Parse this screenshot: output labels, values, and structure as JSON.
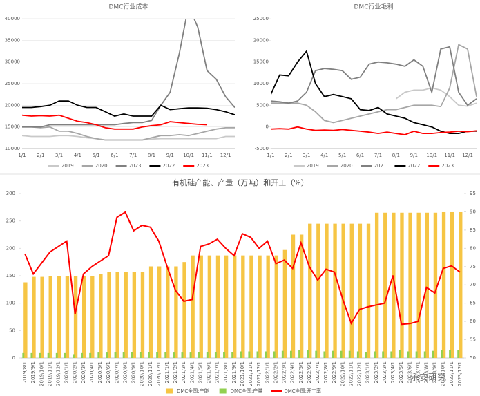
{
  "chart_data": [
    {
      "type": "line",
      "title": "DMC行业成本",
      "categories": [
        "1/1",
        null,
        "2/1",
        null,
        "3/1",
        null,
        "4/1",
        null,
        "5/1",
        null,
        "6/1",
        null,
        "7/1",
        null,
        "8/1",
        null,
        "9/1",
        null,
        "10/1",
        null,
        "11/1",
        null,
        "12/1",
        null
      ],
      "ylim": [
        10000,
        40000
      ],
      "yticks": [
        10000,
        15000,
        20000,
        25000,
        30000,
        35000,
        40000
      ],
      "grid": true,
      "series": [
        {
          "name": "2019",
          "color": "#c9c9c9",
          "values": [
            13000,
            12800,
            12800,
            12800,
            13000,
            13000,
            12800,
            12500,
            12300,
            12000,
            12000,
            12000,
            12000,
            12000,
            12200,
            12300,
            12300,
            12300,
            12300,
            12300,
            12300,
            12300,
            12800,
            12800
          ]
        },
        {
          "name": "2020",
          "color": "#a6a6a6",
          "values": [
            15000,
            15000,
            14800,
            15000,
            14000,
            14000,
            13500,
            12800,
            12300,
            12000,
            12000,
            12000,
            12000,
            12000,
            12500,
            13000,
            13000,
            13200,
            13000,
            13500,
            14000,
            14500,
            14800,
            14800
          ]
        },
        {
          "name": "2023",
          "color": "#808080",
          "values": [
            15000,
            15000,
            15000,
            15500,
            15500,
            15500,
            15500,
            15500,
            15500,
            15500,
            15500,
            15800,
            16000,
            16000,
            16500,
            20000,
            23000,
            32000,
            43000,
            38000,
            28000,
            26000,
            22000,
            19500
          ]
        },
        {
          "name": "2022",
          "color": "#000000",
          "values": [
            19500,
            19500,
            19700,
            20000,
            21000,
            21000,
            20000,
            19500,
            19500,
            18500,
            17500,
            18000,
            17500,
            17500,
            17500,
            20000,
            19000,
            19200,
            19400,
            19400,
            19300,
            19000,
            18500,
            17800
          ]
        },
        {
          "name": "2023",
          "color": "#ff0000",
          "values": [
            17700,
            17500,
            17600,
            17500,
            17700,
            17000,
            16300,
            16000,
            15500,
            14800,
            14500,
            14500,
            14500,
            15000,
            15300,
            15500,
            16200,
            16000,
            15800,
            15600,
            15500,
            null,
            null,
            null
          ]
        }
      ]
    },
    {
      "type": "line",
      "title": "DMC行业毛利",
      "categories": [
        "1/1",
        null,
        "2/1",
        null,
        "3/1",
        null,
        "4/1",
        null,
        "5/1",
        null,
        "6/1",
        null,
        "7/1",
        null,
        "8/1",
        null,
        "9/1",
        null,
        "10/1",
        null,
        "11/1",
        null,
        "12/1",
        null
      ],
      "ylim": [
        -5000,
        25000
      ],
      "yticks": [
        -5000,
        0,
        5000,
        10000,
        15000,
        20000,
        25000
      ],
      "grid": false,
      "series": [
        {
          "name": "2019",
          "color": "#c9c9c9",
          "values": [
            null,
            null,
            null,
            null,
            null,
            null,
            null,
            null,
            null,
            null,
            null,
            null,
            null,
            null,
            6500,
            8000,
            8500,
            8500,
            9000,
            8500,
            7000,
            5000,
            4800,
            5500
          ]
        },
        {
          "name": "2020",
          "color": "#a6a6a6",
          "values": [
            5500,
            5500,
            5500,
            5500,
            5000,
            3500,
            1500,
            1000,
            1500,
            2000,
            2500,
            3000,
            3500,
            4000,
            4000,
            4500,
            5000,
            5000,
            5000,
            4700,
            9000,
            19000,
            18000,
            7000
          ]
        },
        {
          "name": "2021",
          "color": "#808080",
          "values": [
            6000,
            5800,
            5500,
            6000,
            8000,
            13000,
            13500,
            13300,
            13000,
            11000,
            11500,
            14500,
            15000,
            14800,
            14500,
            14000,
            15500,
            14000,
            8000,
            18000,
            18500,
            8000,
            5000,
            6500
          ]
        },
        {
          "name": "2022",
          "color": "#000000",
          "values": [
            7500,
            12000,
            11800,
            15000,
            17500,
            10000,
            7000,
            7500,
            7000,
            6500,
            4000,
            3800,
            4500,
            3000,
            2500,
            2000,
            1000,
            500,
            0,
            -1000,
            -1500,
            -1500,
            -1000,
            -1000
          ]
        },
        {
          "name": "2023",
          "color": "#ff0000",
          "values": [
            -500,
            -400,
            -500,
            0,
            -500,
            -800,
            -700,
            -800,
            -600,
            -800,
            -1000,
            -1200,
            -1500,
            -1200,
            -1500,
            -1800,
            -1000,
            -1500,
            -1500,
            -1300,
            -1200,
            -1000,
            -1100,
            -900
          ]
        }
      ]
    },
    {
      "type": "bar",
      "title": "有机硅产能、产量（万吨）和开工（%）",
      "watermark": "永安研究",
      "categories": [
        "2019/8/1",
        "2019/9/1",
        "2019/10/1",
        "2019/11/1",
        "2019/12/1",
        "2020/1/1",
        "2020/2/1",
        "2020/3/1",
        "2020/4/1",
        "2020/5/1",
        "2020/6/1",
        "2020/7/1",
        "2020/8/1",
        "2020/9/1",
        "2020/10/1",
        "2020/11/1",
        "2020/12/1",
        "2021/1/1",
        "2021/2/1",
        "2021/3/1",
        "2021/4/1",
        "2021/5/1",
        "2021/6/1",
        "2021/7/1",
        "2021/8/1",
        "2021/9/1",
        "2021/10/1",
        "2021/11/1",
        "2021/12/1",
        "2022/1/1",
        "2022/2/1",
        "2022/3/1",
        "2022/4/1",
        "2022/5/1",
        "2022/6/1",
        "2022/7/1",
        "2022/8/1",
        "2022/9/1",
        "2022/10/1",
        "2022/11/1",
        "2022/12/1",
        "2023/1/1",
        "2023/2/1",
        "2023/3/1",
        "2023/4/1",
        "2023/5/1",
        "2023/6/1",
        "2023/7/1",
        "2023/8/1",
        "2023/9/1",
        "2023/10/1",
        "2023/11/1",
        "2023/12/1"
      ],
      "ylim": [
        0,
        300
      ],
      "yticks": [
        0,
        50,
        100,
        150,
        200,
        250,
        300
      ],
      "y2lim": [
        50,
        95
      ],
      "y2ticks": [
        50,
        55,
        60,
        65,
        70,
        75,
        80,
        85,
        90,
        95
      ],
      "grid": false,
      "series": [
        {
          "name": "DMC全国:产能",
          "color": "#f6c544",
          "values": [
            138,
            148,
            148,
            149,
            150,
            150,
            150,
            150,
            150,
            153,
            157,
            157,
            157,
            157,
            157,
            167,
            167,
            167,
            167,
            175,
            187,
            187,
            187,
            187,
            187,
            187,
            187,
            187,
            187,
            187,
            187,
            197,
            225,
            225,
            245,
            245,
            245,
            245,
            245,
            245,
            245,
            245,
            265,
            265,
            265,
            265,
            265,
            265,
            265,
            265,
            266,
            266,
            266
          ]
        },
        {
          "name": "DMC全国:产量",
          "color": "#92d050",
          "values": [
            9,
            9,
            9,
            9,
            9,
            9,
            7,
            9,
            9,
            10,
            10,
            11,
            11,
            11,
            11,
            11,
            11,
            11,
            10,
            10,
            10,
            11,
            11,
            11,
            11,
            11,
            12,
            12,
            12,
            12,
            12,
            13,
            13,
            14,
            14,
            13,
            12,
            13,
            13,
            13,
            12,
            11,
            12,
            12,
            12,
            14,
            12,
            12,
            12,
            13,
            14,
            15,
            15
          ]
        },
        {
          "name": "DMC全国:开工率",
          "color": "#ff0000",
          "type": "line",
          "axis": "y2",
          "values": [
            78.5,
            73,
            76,
            79,
            80.5,
            82,
            62,
            73,
            75,
            76.5,
            78,
            88.5,
            89.9,
            84.8,
            86.3,
            85.8,
            82,
            75,
            68.5,
            65.5,
            66,
            80.5,
            81.2,
            82.5,
            80,
            78,
            84,
            83,
            80,
            82,
            75.8,
            76.8,
            74.5,
            81.5,
            75,
            71.3,
            74.3,
            73.5,
            66,
            59.5,
            63.3,
            64,
            64.5,
            65,
            72.6,
            59.2,
            59.4,
            60,
            69.3,
            67.8,
            74.5,
            75.2,
            73.5
          ]
        }
      ]
    }
  ]
}
